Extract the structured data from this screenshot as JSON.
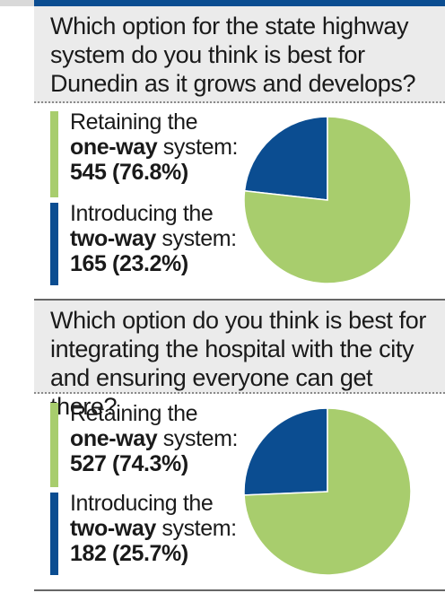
{
  "colors": {
    "one_way": "#a8cd6d",
    "two_way": "#0b4d91",
    "question_bg": "#ebebeb",
    "band_blue": "#0b4d91"
  },
  "chart_data": [
    {
      "type": "pie",
      "title": "Which option for the state highway system do you think is best for Dunedin as it grows and develops?",
      "slices": [
        {
          "label_pre": "Retaining the",
          "label_bold": "one-way",
          "label_post": "system:",
          "value": 545,
          "percent_text": "545 (76.8%)",
          "percent": 76.8,
          "color": "#a8cd6d"
        },
        {
          "label_pre": "Introducing the",
          "label_bold": "two-way",
          "label_post": "system:",
          "value": 165,
          "percent_text": "165 (23.2%)",
          "percent": 23.2,
          "color": "#0b4d91"
        }
      ]
    },
    {
      "type": "pie",
      "title": "Which option do you think is best for integrating the hospital with the city and ensuring everyone can get there?",
      "slices": [
        {
          "label_pre": "Retaining the",
          "label_bold": "one-way",
          "label_post": "system:",
          "value": 527,
          "percent_text": "527 (74.3%)",
          "percent": 74.3,
          "color": "#a8cd6d"
        },
        {
          "label_pre": "Introducing the",
          "label_bold": "two-way",
          "label_post": "system:",
          "value": 182,
          "percent_text": "182 (25.7%)",
          "percent": 25.7,
          "color": "#0b4d91"
        }
      ]
    }
  ]
}
